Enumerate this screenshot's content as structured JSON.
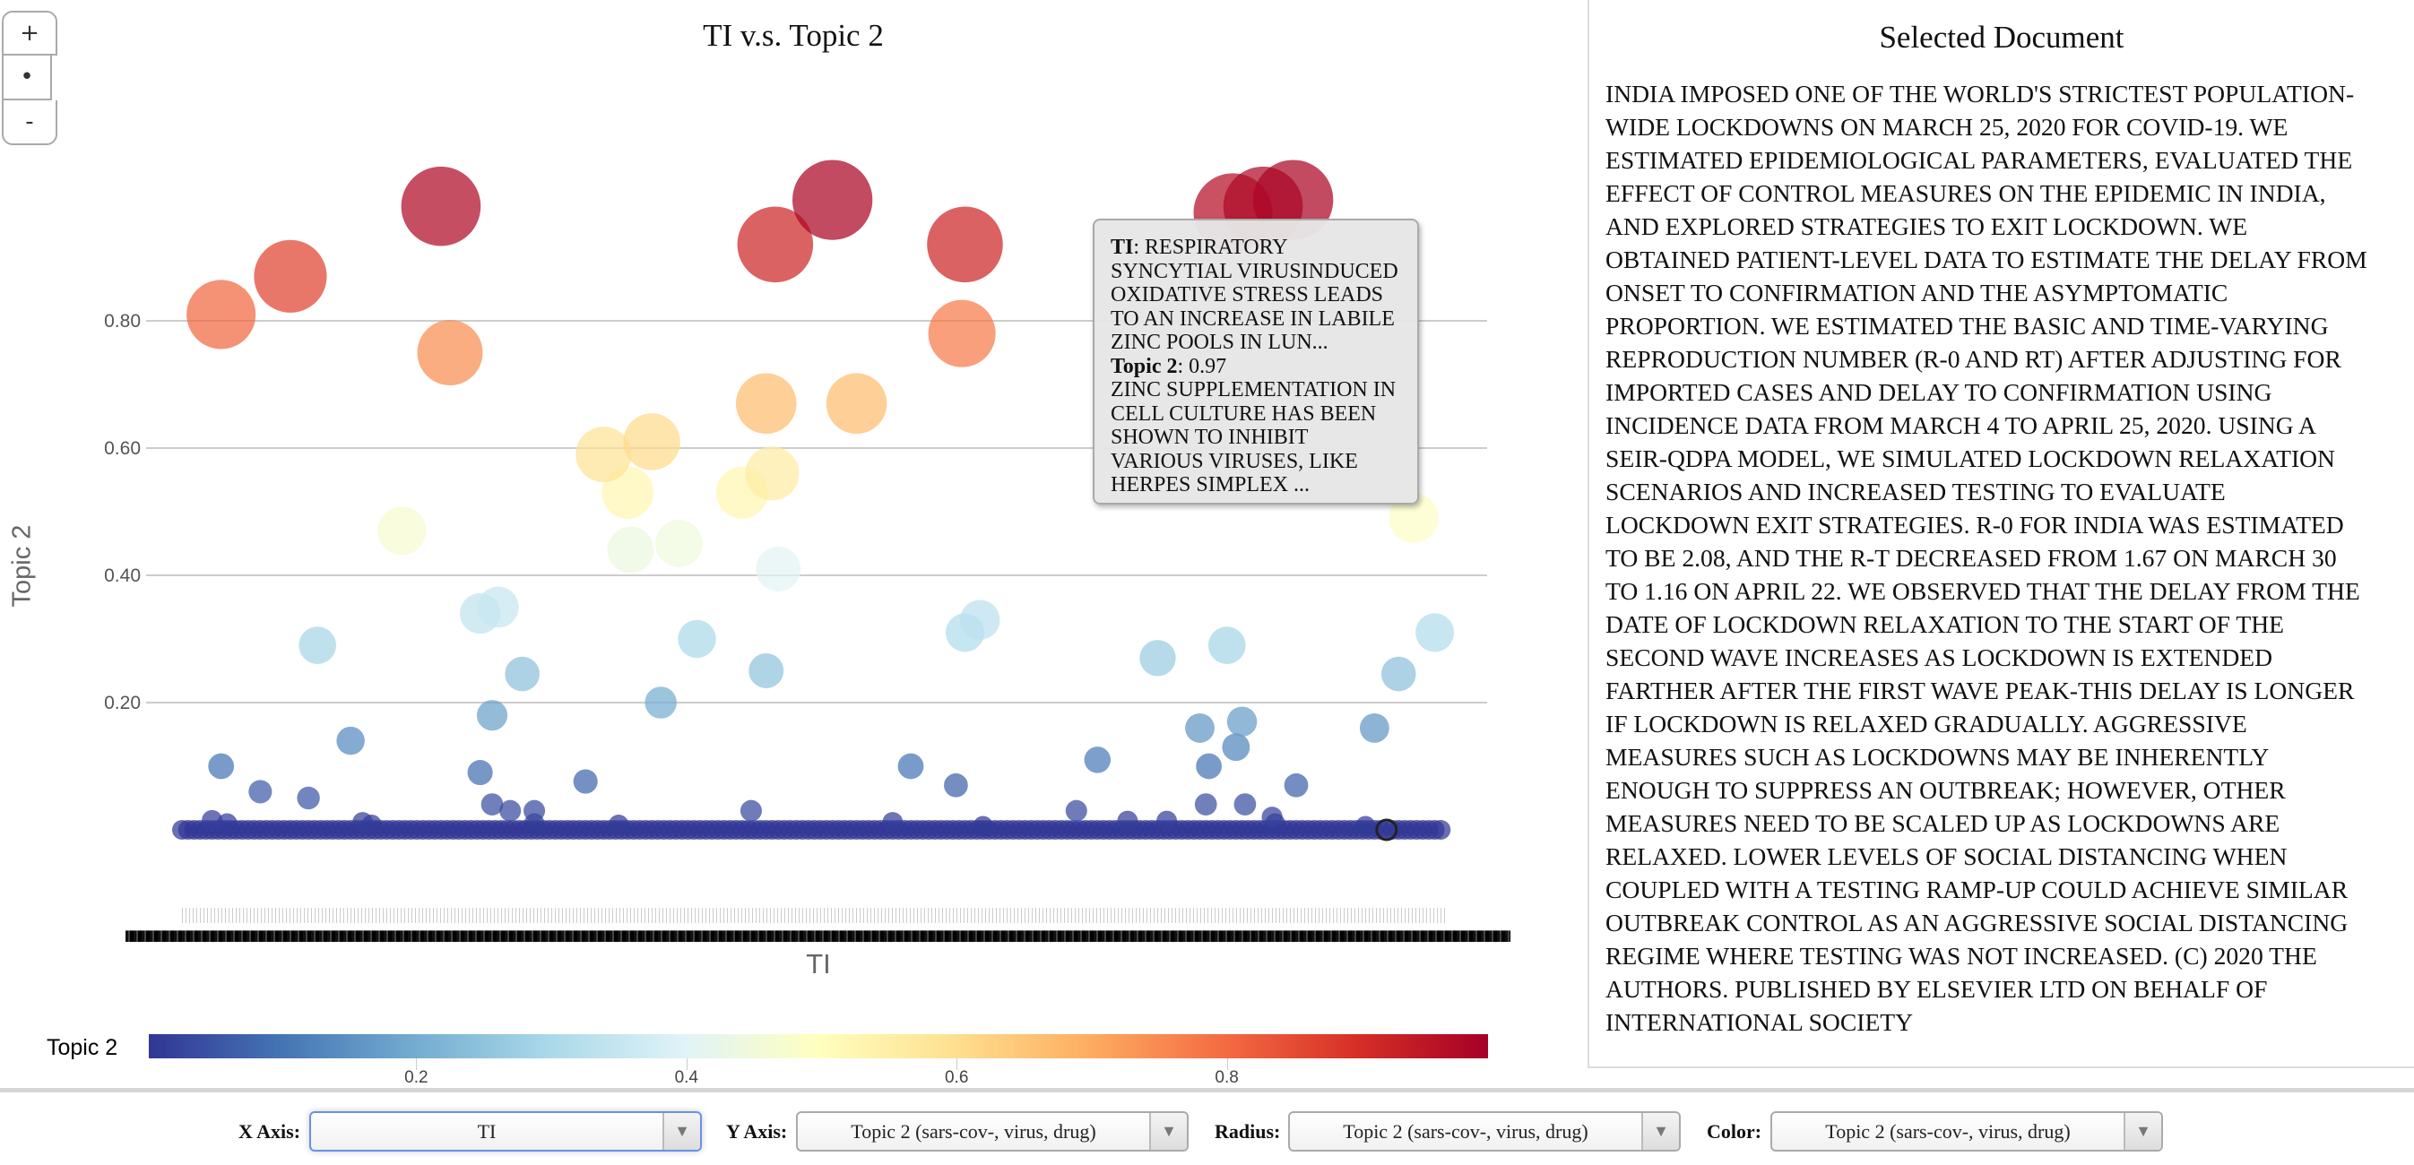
{
  "zoom_controls": {
    "zoom_in": "+",
    "reset": "•",
    "zoom_out": "-"
  },
  "chart_data": {
    "type": "scatter",
    "title": "TI v.s. Topic 2",
    "xlabel": "TI",
    "ylabel": "Topic 2",
    "x_axis_kind": "categorical (document titles, labels illegibly overlapped)",
    "x_index_range": [
      0,
      420
    ],
    "ylim": [
      0,
      1.0
    ],
    "yticks": [
      "0.20",
      "0.40",
      "0.60",
      "0.80"
    ],
    "ytick_values": [
      0.2,
      0.4,
      0.6,
      0.8
    ],
    "grid": "horizontal",
    "radius_encoding": "Topic 2",
    "color_encoding": "Topic 2",
    "colorscale": "RdYlBu reversed",
    "colorscale_stops": [
      "#313695",
      "#4575b4",
      "#74add1",
      "#abd9e9",
      "#e0f3f8",
      "#ffffbf",
      "#fee090",
      "#fdae61",
      "#f46d43",
      "#d73027",
      "#a50026"
    ],
    "points": [
      [
        13,
        0.81
      ],
      [
        36,
        0.87
      ],
      [
        86,
        0.98
      ],
      [
        89,
        0.75
      ],
      [
        197,
        0.92
      ],
      [
        216,
        0.99
      ],
      [
        260,
        0.92
      ],
      [
        259,
        0.78
      ],
      [
        349,
        0.97
      ],
      [
        359,
        0.98
      ],
      [
        369,
        0.99
      ],
      [
        140,
        0.59
      ],
      [
        148,
        0.53
      ],
      [
        156,
        0.61
      ],
      [
        194,
        0.67
      ],
      [
        224,
        0.67
      ],
      [
        186,
        0.53
      ],
      [
        196,
        0.56
      ],
      [
        73,
        0.47
      ],
      [
        149,
        0.44
      ],
      [
        165,
        0.45
      ],
      [
        198,
        0.41
      ],
      [
        409,
        0.49
      ],
      [
        45,
        0.29
      ],
      [
        99,
        0.34
      ],
      [
        105,
        0.35
      ],
      [
        113,
        0.245
      ],
      [
        103,
        0.18
      ],
      [
        171,
        0.3
      ],
      [
        194,
        0.25
      ],
      [
        159,
        0.2
      ],
      [
        260,
        0.31
      ],
      [
        265,
        0.33
      ],
      [
        324,
        0.27
      ],
      [
        347,
        0.29
      ],
      [
        404,
        0.245
      ],
      [
        416,
        0.31
      ],
      [
        56,
        0.14
      ],
      [
        338,
        0.16
      ],
      [
        352,
        0.17
      ],
      [
        396,
        0.16
      ],
      [
        350,
        0.13
      ],
      [
        13,
        0.1
      ],
      [
        26,
        0.06
      ],
      [
        42,
        0.05
      ],
      [
        99,
        0.09
      ],
      [
        103,
        0.04
      ],
      [
        109,
        0.03
      ],
      [
        117,
        0.03
      ],
      [
        134,
        0.076
      ],
      [
        189,
        0.03
      ],
      [
        242,
        0.1
      ],
      [
        257,
        0.07
      ],
      [
        304,
        0.11
      ],
      [
        297,
        0.03
      ],
      [
        341,
        0.1
      ],
      [
        340,
        0.04
      ],
      [
        353,
        0.04
      ],
      [
        362,
        0.02
      ],
      [
        370,
        0.07
      ],
      [
        10,
        0.015
      ],
      [
        15,
        0.01
      ],
      [
        60,
        0.012
      ],
      [
        63,
        0.008
      ],
      [
        117,
        0.01
      ],
      [
        145,
        0.008
      ],
      [
        236,
        0.012
      ],
      [
        266,
        0.006
      ],
      [
        314,
        0.014
      ],
      [
        327,
        0.014
      ],
      [
        363,
        0.01
      ],
      [
        393,
        0.006
      ]
    ],
    "near_zero_indices": [
      0,
      4,
      8,
      12,
      16,
      20,
      24,
      28,
      32,
      36,
      40,
      44,
      48,
      52,
      56,
      60,
      64,
      68,
      72,
      76,
      80,
      84,
      88,
      92,
      96,
      100,
      104,
      108,
      112,
      116,
      120,
      124,
      128,
      132,
      136,
      140,
      144,
      148,
      152,
      156,
      160,
      164,
      168,
      172,
      176,
      180,
      184,
      188,
      192,
      196,
      200,
      204,
      208,
      212,
      216,
      220,
      224,
      228,
      232,
      236,
      240,
      244,
      248,
      252,
      256,
      260,
      264,
      268,
      272,
      276,
      280,
      284,
      288,
      292,
      296,
      300,
      304,
      308,
      312,
      316,
      320,
      324,
      328,
      332,
      336,
      340,
      344,
      348,
      352,
      356,
      360,
      364,
      368,
      372,
      376,
      380,
      384,
      388,
      392,
      396,
      400,
      404,
      408,
      412,
      416
    ],
    "near_zero_value": 0.0,
    "hovered_index": 400,
    "colorbar": {
      "label": "Topic 2",
      "ticks": [
        "0.2",
        "0.4",
        "0.6",
        "0.8"
      ],
      "tick_values": [
        0.2,
        0.4,
        0.6,
        0.8
      ],
      "range": [
        0,
        1
      ]
    }
  },
  "tooltip": {
    "ti_label": "TI",
    "ti_value": ": RESPIRATORY SYNCYTIAL VIRUSINDUCED OXIDATIVE STRESS LEADS TO AN INCREASE IN LABILE ZINC POOLS IN LUN...",
    "topic_label": "Topic 2",
    "topic_value": ": 0.97",
    "abstract": "ZINC SUPPLEMENTATION IN CELL CULTURE HAS BEEN SHOWN TO INHIBIT VARIOUS VIRUSES, LIKE HERPES SIMPLEX ..."
  },
  "document": {
    "title": "Selected Document",
    "body": "INDIA IMPOSED ONE OF THE WORLD'S STRICTEST POPULATION-WIDE LOCKDOWNS ON MARCH 25, 2020 FOR COVID-19. WE ESTIMATED EPIDEMIOLOGICAL PARAMETERS, EVALUATED THE EFFECT OF CONTROL MEASURES ON THE EPIDEMIC IN INDIA, AND EXPLORED STRATEGIES TO EXIT LOCKDOWN. WE OBTAINED PATIENT-LEVEL DATA TO ESTIMATE THE DELAY FROM ONSET TO CONFIRMATION AND THE ASYMPTOMATIC PROPORTION. WE ESTIMATED THE BASIC AND TIME-VARYING REPRODUCTION NUMBER (R-0 AND RT) AFTER ADJUSTING FOR IMPORTED CASES AND DELAY TO CONFIRMATION USING INCIDENCE DATA FROM MARCH 4 TO APRIL 25, 2020. USING A SEIR-QDPA MODEL, WE SIMULATED LOCKDOWN RELAXATION SCENARIOS AND INCREASED TESTING TO EVALUATE LOCKDOWN EXIT STRATEGIES. R-0 FOR INDIA WAS ESTIMATED TO BE 2.08, AND THE R-T DECREASED FROM 1.67 ON MARCH 30 TO 1.16 ON APRIL 22. WE OBSERVED THAT THE DELAY FROM THE DATE OF LOCKDOWN RELAXATION TO THE START OF THE SECOND WAVE INCREASES AS LOCKDOWN IS EXTENDED FARTHER AFTER THE FIRST WAVE PEAK-THIS DELAY IS LONGER IF LOCKDOWN IS RELAXED GRADUALLY. AGGRESSIVE MEASURES SUCH AS LOCKDOWNS MAY BE INHERENTLY ENOUGH TO SUPPRESS AN OUTBREAK; HOWEVER, OTHER MEASURES NEED TO BE SCALED UP AS LOCKDOWNS ARE RELAXED. LOWER LEVELS OF SOCIAL DISTANCING WHEN COUPLED WITH A TESTING RAMP-UP COULD ACHIEVE SIMILAR OUTBREAK CONTROL AS AN AGGRESSIVE SOCIAL DISTANCING REGIME WHERE TESTING WAS NOT INCREASED. (C) 2020 THE AUTHORS. PUBLISHED BY ELSEVIER LTD ON BEHALF OF INTERNATIONAL SOCIETY"
  },
  "controls": {
    "x_axis": {
      "label": "X Axis:",
      "value": "TI"
    },
    "y_axis": {
      "label": "Y Axis:",
      "value": "Topic 2 (sars-cov-, virus, drug)"
    },
    "radius": {
      "label": "Radius:",
      "value": "Topic 2 (sars-cov-, virus, drug)"
    },
    "color": {
      "label": "Color:",
      "value": "Topic 2 (sars-cov-, virus, drug)"
    },
    "dropdown_icon": "triangle-down"
  }
}
